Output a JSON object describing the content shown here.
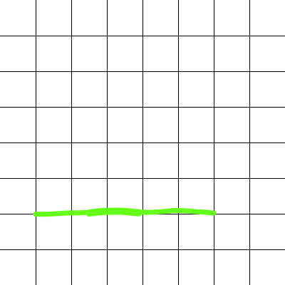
{
  "canvas": {
    "background_color": "#ffffff",
    "grid": {
      "visible": true,
      "line_color": "#000000",
      "rows": 8,
      "columns": 8
    },
    "stroke": {
      "color": "#66ff1a",
      "kind": "freehand-horizontal-line"
    }
  }
}
